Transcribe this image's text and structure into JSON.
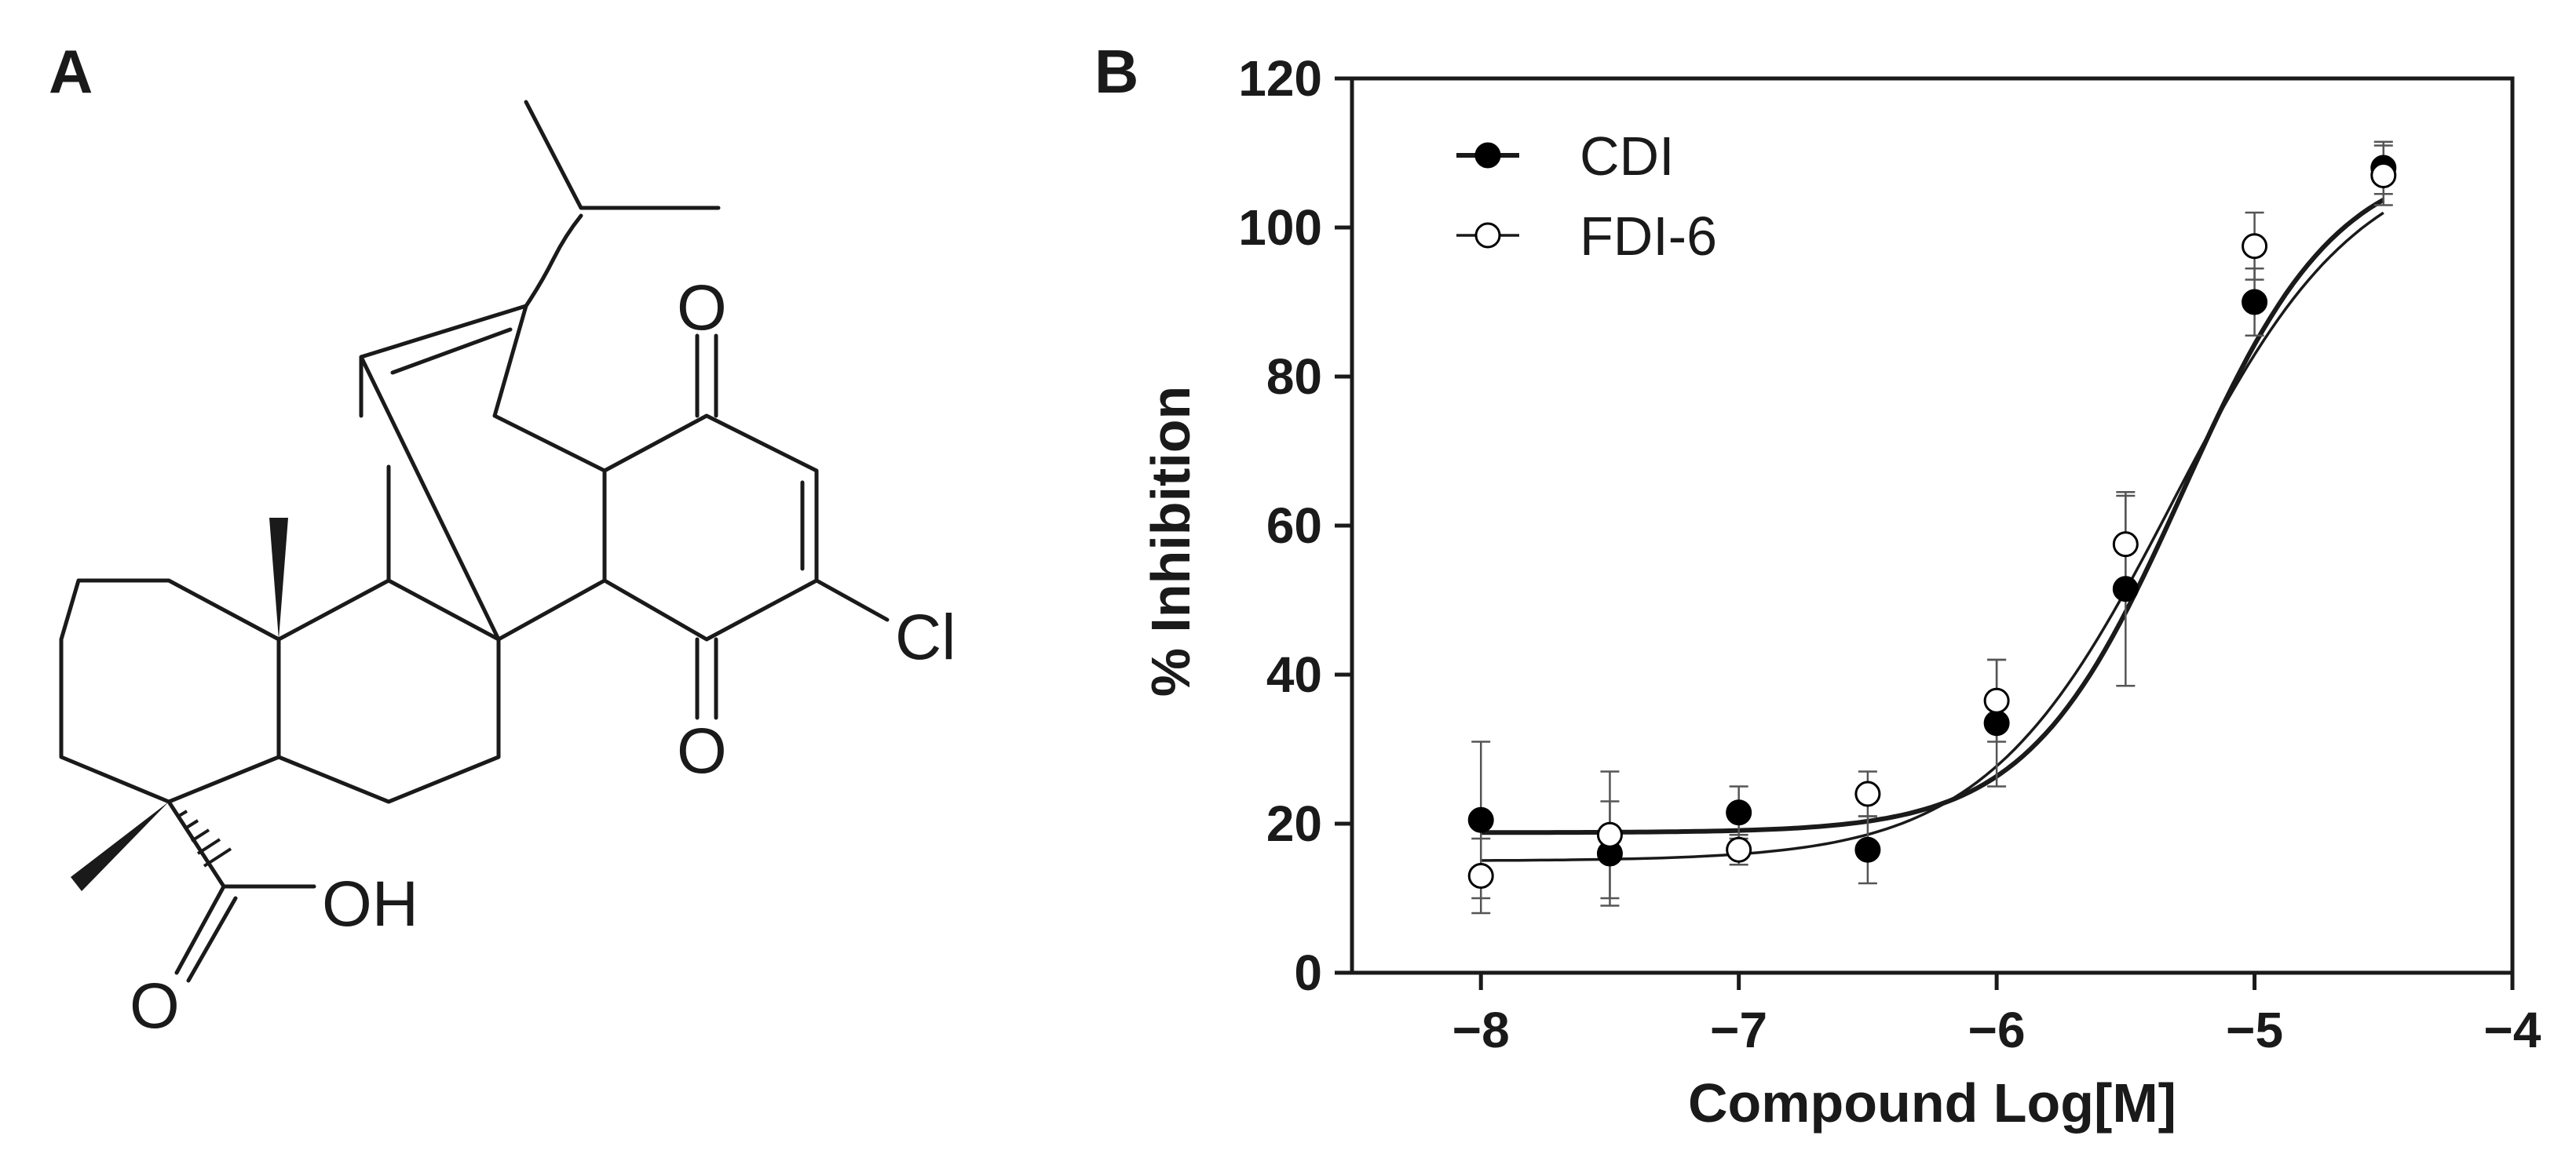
{
  "panels": {
    "a_label": "A",
    "b_label": "B"
  },
  "structure": {
    "atoms": {
      "o_top": "O",
      "o_bottom": "O",
      "cl": "Cl",
      "oh": "OH",
      "o_acid": "O"
    }
  },
  "chart_data": {
    "type": "line",
    "title": "",
    "xlabel": "Compound Log[M]",
    "ylabel": "% Inhibition",
    "xlim": [
      -8.5,
      -4
    ],
    "ylim": [
      0,
      120
    ],
    "xticks": [
      -8,
      -7,
      -6,
      -5,
      -4
    ],
    "xtick_labels": [
      "−8",
      "−7",
      "−6",
      "−5",
      "−4"
    ],
    "yticks": [
      0,
      20,
      40,
      60,
      80,
      100,
      120
    ],
    "ytick_labels": [
      "0",
      "20",
      "40",
      "60",
      "80",
      "100",
      "120"
    ],
    "legend_position": "top-left",
    "grid": false,
    "series": [
      {
        "name": "CDI",
        "marker": "filled-circle",
        "color": "#000000",
        "x": [
          -8,
          -7.5,
          -7,
          -6.5,
          -6,
          -5.5,
          -5,
          -4.5
        ],
        "y": [
          20.5,
          16,
          21.5,
          16.5,
          33.5,
          51.5,
          90,
          108
        ],
        "err": [
          10.5,
          7,
          3.5,
          4.5,
          8.5,
          13,
          4.5,
          3.5
        ],
        "fit": {
          "bottom": 18.8,
          "top": 110,
          "logEC50": -5.28,
          "hill": 1.45
        }
      },
      {
        "name": "FDI-6",
        "marker": "open-circle",
        "color": "#000000",
        "x": [
          -8,
          -7.5,
          -7,
          -6.5,
          -6,
          -5.5,
          -5,
          -4.5
        ],
        "y": [
          13,
          18.5,
          16.5,
          24,
          36.5,
          57.5,
          97.5,
          107
        ],
        "err": [
          5,
          8.5,
          2,
          3,
          5.5,
          6.5,
          4.5,
          4
        ],
        "fit": {
          "bottom": 15,
          "top": 111,
          "logEC50": -5.32,
          "hill": 1.2
        }
      }
    ]
  }
}
